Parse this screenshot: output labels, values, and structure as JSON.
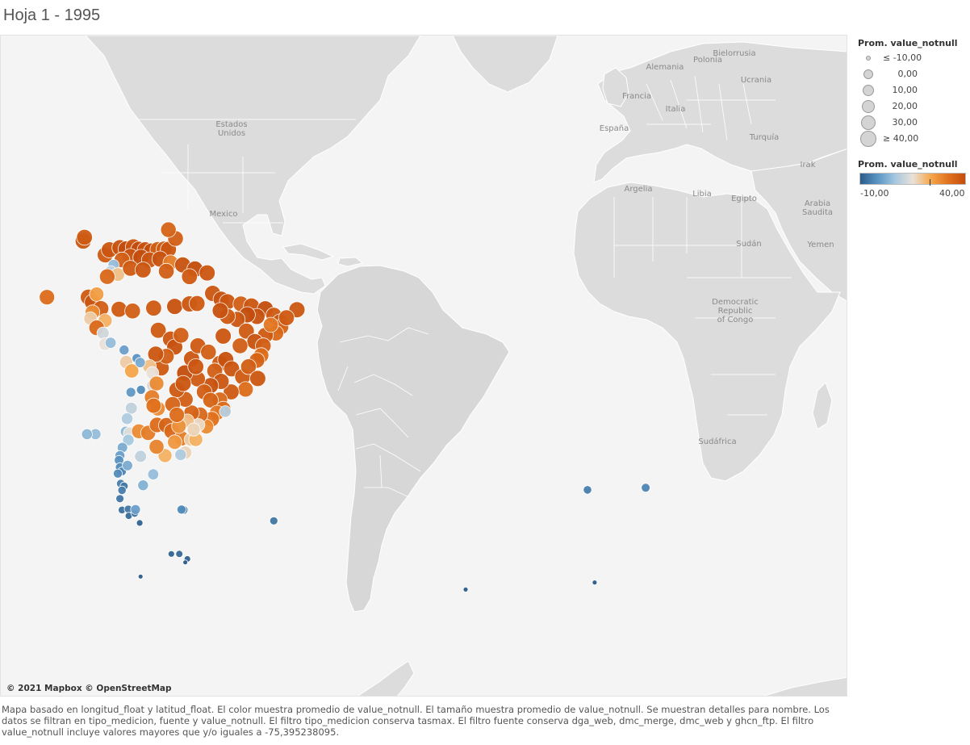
{
  "sheet": {
    "title": "Hoja 1 - 1995"
  },
  "map": {
    "attribution": "© 2021 Mapbox © OpenStreetMap",
    "labels": [
      "Estados Unidos",
      "Mexico",
      "Polonia",
      "Bielorrusia",
      "Alemania",
      "Ucrania",
      "Francia",
      "Italia",
      "España",
      "Turquía",
      "Irak",
      "Argelia",
      "Libia",
      "Egipto",
      "Arabia Saudita",
      "Sudán",
      "Yemen",
      "Democratic Republic of Congo",
      "Sudáfrica"
    ],
    "colors": {
      "ocean": "#f4f4f4",
      "land": "#dcdcdc",
      "cold": "#2f6aa3",
      "mid": "#d9d3ce",
      "hot": "#d4540c"
    }
  },
  "legend": {
    "size": {
      "title": "Prom. value_notnull",
      "items": [
        {
          "label": "≤ -10,00",
          "value": -10
        },
        {
          "label": "0,00",
          "value": 0
        },
        {
          "label": "10,00",
          "value": 10
        },
        {
          "label": "20,00",
          "value": 20
        },
        {
          "label": "30,00",
          "value": 30
        },
        {
          "label": "≥ 40,00",
          "value": 40
        }
      ]
    },
    "color": {
      "title": "Prom. value_notnull",
      "min_label": "-10,00",
      "max_label": "40,00",
      "min": -10,
      "max": 40,
      "stops": [
        "#2b5c8a",
        "#5b95c4",
        "#a5c8e0",
        "#e9e1d9",
        "#f6a94e",
        "#e2731e",
        "#c44d0d"
      ]
    }
  },
  "stations": [
    {
      "lon": -76.5,
      "lat": 9.2,
      "v": 37
    },
    {
      "lon": -75.5,
      "lat": 10.4,
      "v": 38
    },
    {
      "lon": -73.0,
      "lat": 10.9,
      "v": 39
    },
    {
      "lon": -71.5,
      "lat": 10.6,
      "v": 40
    },
    {
      "lon": -69.8,
      "lat": 11.1,
      "v": 38
    },
    {
      "lon": -68.5,
      "lat": 10.5,
      "v": 40
    },
    {
      "lon": -67.0,
      "lat": 10.4,
      "v": 39
    },
    {
      "lon": -65.5,
      "lat": 10.1,
      "v": 40
    },
    {
      "lon": -64.0,
      "lat": 10.5,
      "v": 36
    },
    {
      "lon": -62.5,
      "lat": 10.6,
      "v": 37
    },
    {
      "lon": -61.5,
      "lat": 10.5,
      "v": 38
    },
    {
      "lon": -70.5,
      "lat": 8.8,
      "v": 39
    },
    {
      "lon": -68.0,
      "lat": 8.6,
      "v": 40
    },
    {
      "lon": -66.0,
      "lat": 8.0,
      "v": 38
    },
    {
      "lon": -63.5,
      "lat": 8.2,
      "v": 39
    },
    {
      "lon": -61.0,
      "lat": 7.4,
      "v": 30
    },
    {
      "lon": -72.5,
      "lat": 8.0,
      "v": 36
    },
    {
      "lon": -74.5,
      "lat": 6.8,
      "v": 5
    },
    {
      "lon": -75.2,
      "lat": 5.2,
      "v": 10
    },
    {
      "lon": -73.5,
      "lat": 4.5,
      "v": 20
    },
    {
      "lon": -76.0,
      "lat": 4.0,
      "v": 34
    },
    {
      "lon": -70.5,
      "lat": 6.0,
      "v": 37
    },
    {
      "lon": -67.5,
      "lat": 5.6,
      "v": 38
    },
    {
      "lon": -62.0,
      "lat": 5.3,
      "v": 36
    },
    {
      "lon": -58.1,
      "lat": 6.8,
      "v": 39
    },
    {
      "lon": -55.2,
      "lat": 5.8,
      "v": 40
    },
    {
      "lon": -52.3,
      "lat": 4.9,
      "v": 38
    },
    {
      "lon": -56.5,
      "lat": 4.0,
      "v": 37
    },
    {
      "lon": -80.5,
      "lat": -0.9,
      "v": 37
    },
    {
      "lon": -79.5,
      "lat": -2.1,
      "v": 38
    },
    {
      "lon": -78.5,
      "lat": -0.2,
      "v": 25
    },
    {
      "lon": -77.5,
      "lat": -3.6,
      "v": 36
    },
    {
      "lon": -79.5,
      "lat": -4.5,
      "v": 28
    },
    {
      "lon": -80.0,
      "lat": -6.0,
      "v": 18
    },
    {
      "lon": -76.5,
      "lat": -6.5,
      "v": 22
    },
    {
      "lon": -78.5,
      "lat": -8.2,
      "v": 34
    },
    {
      "lon": -77.0,
      "lat": -9.5,
      "v": 12
    },
    {
      "lon": -76.5,
      "lat": -12.1,
      "v": 15
    },
    {
      "lon": -75.2,
      "lat": -11.8,
      "v": 5
    },
    {
      "lon": -72.0,
      "lat": -13.5,
      "v": 0
    },
    {
      "lon": -71.5,
      "lat": -16.4,
      "v": 18
    },
    {
      "lon": -70.2,
      "lat": -18.5,
      "v": 24
    },
    {
      "lon": -69.0,
      "lat": -15.5,
      "v": -2
    },
    {
      "lon": -73.2,
      "lat": -3.8,
      "v": 37
    },
    {
      "lon": -70.0,
      "lat": -4.2,
      "v": 36
    },
    {
      "lon": -65.0,
      "lat": -3.5,
      "v": 37
    },
    {
      "lon": -60.0,
      "lat": -3.1,
      "v": 39
    },
    {
      "lon": -56.5,
      "lat": -2.5,
      "v": 38
    },
    {
      "lon": -54.7,
      "lat": -2.4,
      "v": 37
    },
    {
      "lon": -51.0,
      "lat": 0.0,
      "v": 38
    },
    {
      "lon": -49.0,
      "lat": -1.4,
      "v": 39
    },
    {
      "lon": -47.5,
      "lat": -2.0,
      "v": 38
    },
    {
      "lon": -44.3,
      "lat": -2.5,
      "v": 36
    },
    {
      "lon": -41.8,
      "lat": -3.0,
      "v": 38
    },
    {
      "lon": -38.5,
      "lat": -3.7,
      "v": 40
    },
    {
      "lon": -36.5,
      "lat": -5.2,
      "v": 37
    },
    {
      "lon": -35.0,
      "lat": -6.8,
      "v": 38
    },
    {
      "lon": -34.8,
      "lat": -8.0,
      "v": 35
    },
    {
      "lon": -36.0,
      "lat": -9.5,
      "v": 34
    },
    {
      "lon": -38.5,
      "lat": -10.0,
      "v": 37
    },
    {
      "lon": -37.2,
      "lat": -7.5,
      "v": 31
    },
    {
      "lon": -40.5,
      "lat": -5.5,
      "v": 39
    },
    {
      "lon": -42.8,
      "lat": -5.1,
      "v": 40
    },
    {
      "lon": -45.2,
      "lat": -6.2,
      "v": 38
    },
    {
      "lon": -47.5,
      "lat": -5.5,
      "v": 37
    },
    {
      "lon": -49.2,
      "lat": -4.1,
      "v": 39
    },
    {
      "lon": -43.0,
      "lat": -9.0,
      "v": 37
    },
    {
      "lon": -41.0,
      "lat": -11.5,
      "v": 39
    },
    {
      "lon": -39.0,
      "lat": -12.5,
      "v": 36
    },
    {
      "lon": -39.5,
      "lat": -14.8,
      "v": 33
    },
    {
      "lon": -40.5,
      "lat": -16.0,
      "v": 35
    },
    {
      "lon": -44.5,
      "lat": -12.5,
      "v": 36
    },
    {
      "lon": -31.0,
      "lat": -3.9,
      "v": 38
    },
    {
      "lon": -33.5,
      "lat": -5.8,
      "v": 37
    },
    {
      "lon": -63.9,
      "lat": -8.8,
      "v": 37
    },
    {
      "lon": -61.0,
      "lat": -10.9,
      "v": 38
    },
    {
      "lon": -60.0,
      "lat": -12.8,
      "v": 39
    },
    {
      "lon": -58.5,
      "lat": -10.0,
      "v": 36
    },
    {
      "lon": -56.0,
      "lat": -15.6,
      "v": 38
    },
    {
      "lon": -54.5,
      "lat": -12.5,
      "v": 37
    },
    {
      "lon": -52.0,
      "lat": -14.0,
      "v": 36
    },
    {
      "lon": -49.3,
      "lat": -16.7,
      "v": 37
    },
    {
      "lon": -47.9,
      "lat": -15.8,
      "v": 39
    },
    {
      "lon": -48.5,
      "lat": -10.2,
      "v": 38
    },
    {
      "lon": -50.5,
      "lat": -18.5,
      "v": 36
    },
    {
      "lon": -46.5,
      "lat": -18.0,
      "v": 38
    },
    {
      "lon": -43.9,
      "lat": -19.9,
      "v": 37
    },
    {
      "lon": -42.5,
      "lat": -17.5,
      "v": 36
    },
    {
      "lon": -40.3,
      "lat": -20.3,
      "v": 38
    },
    {
      "lon": -43.2,
      "lat": -22.9,
      "v": 33
    },
    {
      "lon": -46.6,
      "lat": -23.5,
      "v": 37
    },
    {
      "lon": -49.0,
      "lat": -21.0,
      "v": 38
    },
    {
      "lon": -51.5,
      "lat": -22.0,
      "v": 39
    },
    {
      "lon": -54.6,
      "lat": -20.4,
      "v": 37
    },
    {
      "lon": -57.6,
      "lat": -19.0,
      "v": 40
    },
    {
      "lon": -55.0,
      "lat": -17.5,
      "v": 38
    },
    {
      "lon": -53.0,
      "lat": -23.5,
      "v": 36
    },
    {
      "lon": -49.3,
      "lat": -25.4,
      "v": 34
    },
    {
      "lon": -51.5,
      "lat": -25.5,
      "v": 35
    },
    {
      "lon": -48.5,
      "lat": -27.6,
      "v": 33
    },
    {
      "lon": -50.0,
      "lat": -28.5,
      "v": 31
    },
    {
      "lon": -51.2,
      "lat": -30.0,
      "v": 32
    },
    {
      "lon": -52.5,
      "lat": -31.8,
      "v": 28
    },
    {
      "lon": -54.0,
      "lat": -29.0,
      "v": 34
    },
    {
      "lon": -56.0,
      "lat": -28.5,
      "v": 35
    },
    {
      "lon": -57.5,
      "lat": -25.3,
      "v": 36
    },
    {
      "lon": -59.5,
      "lat": -23.0,
      "v": 37
    },
    {
      "lon": -60.5,
      "lat": -26.5,
      "v": 35
    },
    {
      "lon": -58.0,
      "lat": -21.5,
      "v": 38
    },
    {
      "lon": -63.2,
      "lat": -17.8,
      "v": 37
    },
    {
      "lon": -62.0,
      "lat": -15.0,
      "v": 36
    },
    {
      "lon": -64.5,
      "lat": -14.5,
      "v": 38
    },
    {
      "lon": -66.0,
      "lat": -17.4,
      "v": 20
    },
    {
      "lon": -65.3,
      "lat": -19.0,
      "v": 15
    },
    {
      "lon": -68.2,
      "lat": -16.5,
      "v": 2
    },
    {
      "lon": -65.2,
      "lat": -22.0,
      "v": 12
    },
    {
      "lon": -64.3,
      "lat": -21.5,
      "v": 28
    },
    {
      "lon": -65.4,
      "lat": -24.8,
      "v": 30
    },
    {
      "lon": -64.0,
      "lat": -27.5,
      "v": 28
    },
    {
      "lon": -65.0,
      "lat": -26.8,
      "v": 32
    },
    {
      "lon": -68.0,
      "lat": -23.0,
      "v": -3
    },
    {
      "lon": -70.4,
      "lat": -23.6,
      "v": -1
    },
    {
      "lon": -70.3,
      "lat": -27.4,
      "v": 10
    },
    {
      "lon": -71.3,
      "lat": -29.9,
      "v": 8
    },
    {
      "lon": -71.6,
      "lat": -33.0,
      "v": 4
    },
    {
      "lon": -70.7,
      "lat": -33.4,
      "v": 14
    },
    {
      "lon": -71.0,
      "lat": -35.0,
      "v": 7
    },
    {
      "lon": -72.4,
      "lat": -36.8,
      "v": 2
    },
    {
      "lon": -73.0,
      "lat": -38.7,
      "v": 0
    },
    {
      "lon": -73.2,
      "lat": -39.8,
      "v": -2
    },
    {
      "lon": -73.0,
      "lat": -41.5,
      "v": -3
    },
    {
      "lon": -72.5,
      "lat": -42.5,
      "v": -4
    },
    {
      "lon": -73.5,
      "lat": -43.0,
      "v": -3
    },
    {
      "lon": -72.8,
      "lat": -45.4,
      "v": -5
    },
    {
      "lon": -72.0,
      "lat": -46.0,
      "v": -6
    },
    {
      "lon": -72.5,
      "lat": -47.0,
      "v": -5
    },
    {
      "lon": -73.0,
      "lat": -49.0,
      "v": -6
    },
    {
      "lon": -72.5,
      "lat": -51.7,
      "v": -7
    },
    {
      "lon": -71.0,
      "lat": -51.5,
      "v": -6
    },
    {
      "lon": -70.9,
      "lat": -53.1,
      "v": -8
    },
    {
      "lon": -69.5,
      "lat": -52.5,
      "v": -7
    },
    {
      "lon": -68.3,
      "lat": -54.8,
      "v": -9
    },
    {
      "lon": -68.5,
      "lat": -32.9,
      "v": 28
    },
    {
      "lon": -66.3,
      "lat": -33.3,
      "v": 30
    },
    {
      "lon": -64.2,
      "lat": -31.4,
      "v": 33
    },
    {
      "lon": -62.0,
      "lat": -31.5,
      "v": 35
    },
    {
      "lon": -60.7,
      "lat": -32.9,
      "v": 34
    },
    {
      "lon": -58.4,
      "lat": -34.6,
      "v": 30
    },
    {
      "lon": -60.0,
      "lat": -35.5,
      "v": 26
    },
    {
      "lon": -57.5,
      "lat": -38.0,
      "v": 17
    },
    {
      "lon": -62.3,
      "lat": -38.7,
      "v": 22
    },
    {
      "lon": -64.3,
      "lat": -36.6,
      "v": 29
    },
    {
      "lon": -68.1,
      "lat": -38.9,
      "v": 10
    },
    {
      "lon": -71.2,
      "lat": -41.1,
      "v": 2
    },
    {
      "lon": -65.1,
      "lat": -43.2,
      "v": 5
    },
    {
      "lon": -67.5,
      "lat": -45.8,
      "v": 3
    },
    {
      "lon": -69.3,
      "lat": -51.6,
      "v": 0
    },
    {
      "lon": -56.2,
      "lat": -34.9,
      "v": 18
    },
    {
      "lon": -55.0,
      "lat": -34.9,
      "v": 22
    },
    {
      "lon": -54.4,
      "lat": -31.4,
      "v": 16
    },
    {
      "lon": -57.0,
      "lat": -30.4,
      "v": 20
    },
    {
      "lon": -55.5,
      "lat": -32.5,
      "v": 17
    },
    {
      "lon": -59.0,
      "lat": -31.7,
      "v": 27
    },
    {
      "lon": -59.5,
      "lat": -29.0,
      "v": 33
    },
    {
      "lon": -48.0,
      "lat": -28.2,
      "v": 9
    },
    {
      "lon": -58.6,
      "lat": -38.5,
      "v": 8
    },
    {
      "lon": -57.9,
      "lat": -51.7,
      "v": -4
    },
    {
      "lon": -58.4,
      "lat": -51.6,
      "v": -3
    },
    {
      "lon": -78.8,
      "lat": -33.6,
      "v": 5
    },
    {
      "lon": -80.8,
      "lat": -33.6,
      "v": 4
    },
    {
      "lon": -109.4,
      "lat": -27.1,
      "v": 31
    },
    {
      "lon": -90.3,
      "lat": -0.9,
      "v": 33
    },
    {
      "lon": -81.7,
      "lat": 12.5,
      "v": 38
    },
    {
      "lon": -81.4,
      "lat": 13.4,
      "v": 37
    },
    {
      "lon": -59.8,
      "lat": 13.1,
      "v": 36
    },
    {
      "lon": -61.5,
      "lat": 15.2,
      "v": 35
    },
    {
      "lon": -36.5,
      "lat": -54.3,
      "v": -6
    },
    {
      "lon": -60.8,
      "lat": -62.2,
      "v": -9
    },
    {
      "lon": -58.9,
      "lat": -62.2,
      "v": -8
    },
    {
      "lon": -57.0,
      "lat": -63.4,
      "v": -9
    },
    {
      "lon": -57.5,
      "lat": -64.2,
      "v": -10
    },
    {
      "lon": -68.1,
      "lat": -67.6,
      "v": -10
    },
    {
      "lon": 37.9,
      "lat": -46.9,
      "v": -5
    },
    {
      "lon": 51.7,
      "lat": -46.4,
      "v": -4
    },
    {
      "lon": 9.0,
      "lat": -70.7,
      "v": -10
    },
    {
      "lon": 39.6,
      "lat": -69.0,
      "v": -10
    }
  ],
  "caption": "Mapa basado en longitud_float y latitud_float.  El color muestra promedio de value_notnull.  El tamaño muestra promedio de value_notnull.  Se muestran detalles para nombre. Los datos se filtran en tipo_medicion, fuente y value_notnull. El filtro tipo_medicion conserva tasmax. El filtro fuente conserva dga_web, dmc_merge, dmc_web y ghcn_ftp. El filtro value_notnull incluye valores mayores que y/o iguales a -75,395238095."
}
